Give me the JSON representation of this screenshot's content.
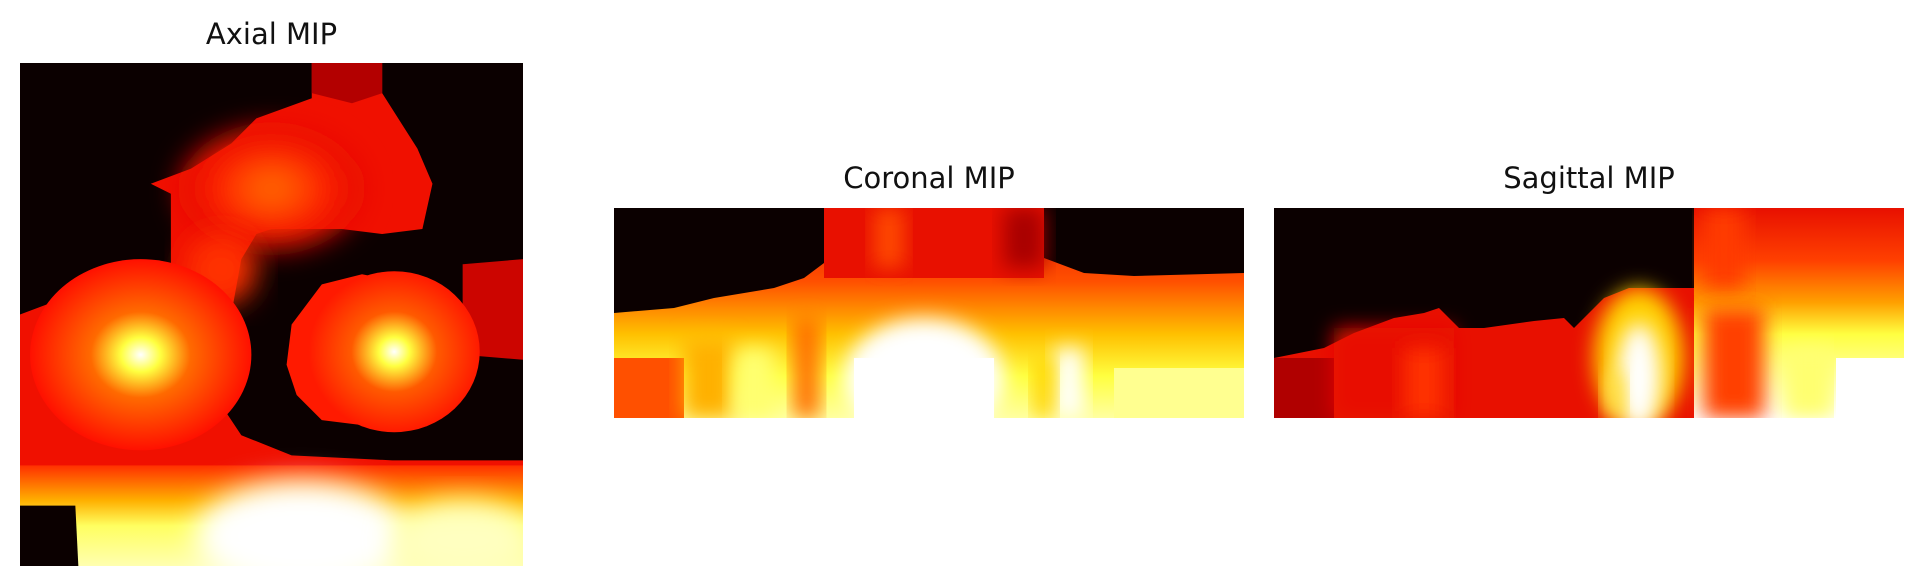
{
  "panels": {
    "axial": {
      "title": "Axial MIP"
    },
    "coronal": {
      "title": "Coronal MIP"
    },
    "sagittal": {
      "title": "Sagittal MIP"
    }
  },
  "colormap": {
    "name": "hot",
    "background": "#0b0000",
    "stops": [
      "#0b0000",
      "#b30000",
      "#ff2a00",
      "#ff6a00",
      "#ffb000",
      "#ffff00",
      "#ffff9a",
      "#ffffff"
    ]
  }
}
